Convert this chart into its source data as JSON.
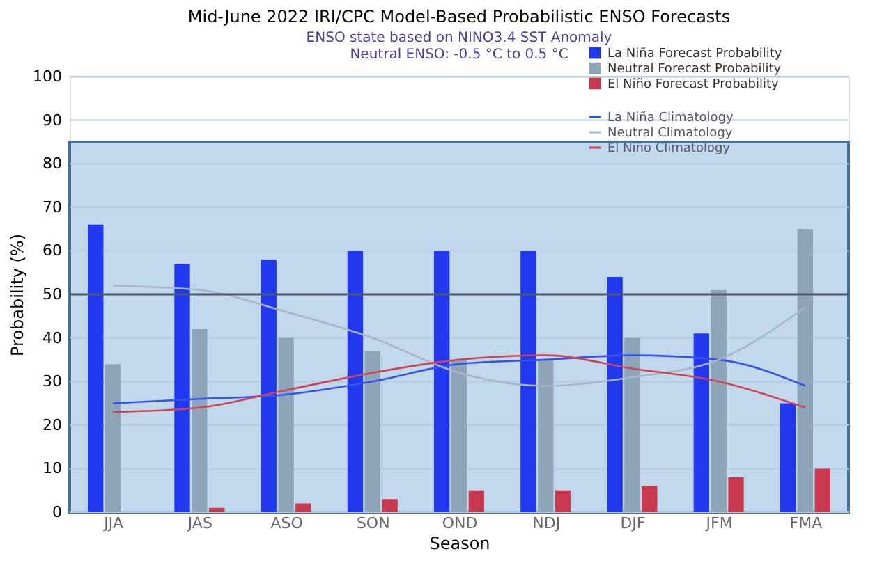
{
  "chart_data": {
    "type": "bar",
    "title": "Mid-June 2022 IRI/CPC Model-Based Probabilistic ENSO Forecasts",
    "subtitle": "ENSO state based on NINO3.4 SST Anomaly\nNeutral ENSO: -0.5 °C to 0.5 °C",
    "xlabel": "Season",
    "ylabel": "Probability (%)",
    "categories": [
      "JJA",
      "JAS",
      "ASO",
      "SON",
      "OND",
      "NDJ",
      "DJF",
      "JFM",
      "FMA"
    ],
    "series": [
      {
        "name": "La Niña Forecast Probability",
        "color": "#2238ee",
        "values": [
          66,
          57,
          58,
          60,
          60,
          60,
          54,
          41,
          25
        ]
      },
      {
        "name": "Neutral Forecast Probability",
        "color": "#8ea4b8",
        "values": [
          34,
          42,
          40,
          37,
          35,
          35,
          40,
          51,
          65
        ]
      },
      {
        "name": "El Niño Forecast Probability",
        "color": "#c8384f",
        "values": [
          0,
          1,
          2,
          3,
          5,
          5,
          6,
          8,
          10
        ]
      },
      {
        "name": "La Niña Climatology",
        "type": "line",
        "color": "#3355ee",
        "values": [
          25,
          26,
          27,
          30,
          34,
          35,
          36,
          35,
          29
        ]
      },
      {
        "name": "Neutral Climatology",
        "type": "line",
        "color": "#a9b6c4",
        "values": [
          52,
          51,
          46,
          40,
          32,
          29,
          31,
          35,
          47
        ]
      },
      {
        "name": "El Niño Climatology",
        "type": "line",
        "color": "#cc4455",
        "values": [
          23,
          24,
          28,
          32,
          35,
          36,
          33,
          30,
          24
        ]
      }
    ],
    "ylim": [
      0,
      100
    ],
    "yticks": [
      0,
      10,
      20,
      30,
      40,
      50,
      60,
      70,
      80,
      90,
      100
    ],
    "bands": [
      {
        "axis": "y",
        "from": 0,
        "to": 85,
        "color": "#c2d8ec"
      }
    ],
    "ref_lines": [
      {
        "axis": "y",
        "value": 50,
        "color": "#4a5a6a"
      }
    ],
    "grid": "y",
    "legend": "top right",
    "marker": "none",
    "line_style": "solid"
  }
}
